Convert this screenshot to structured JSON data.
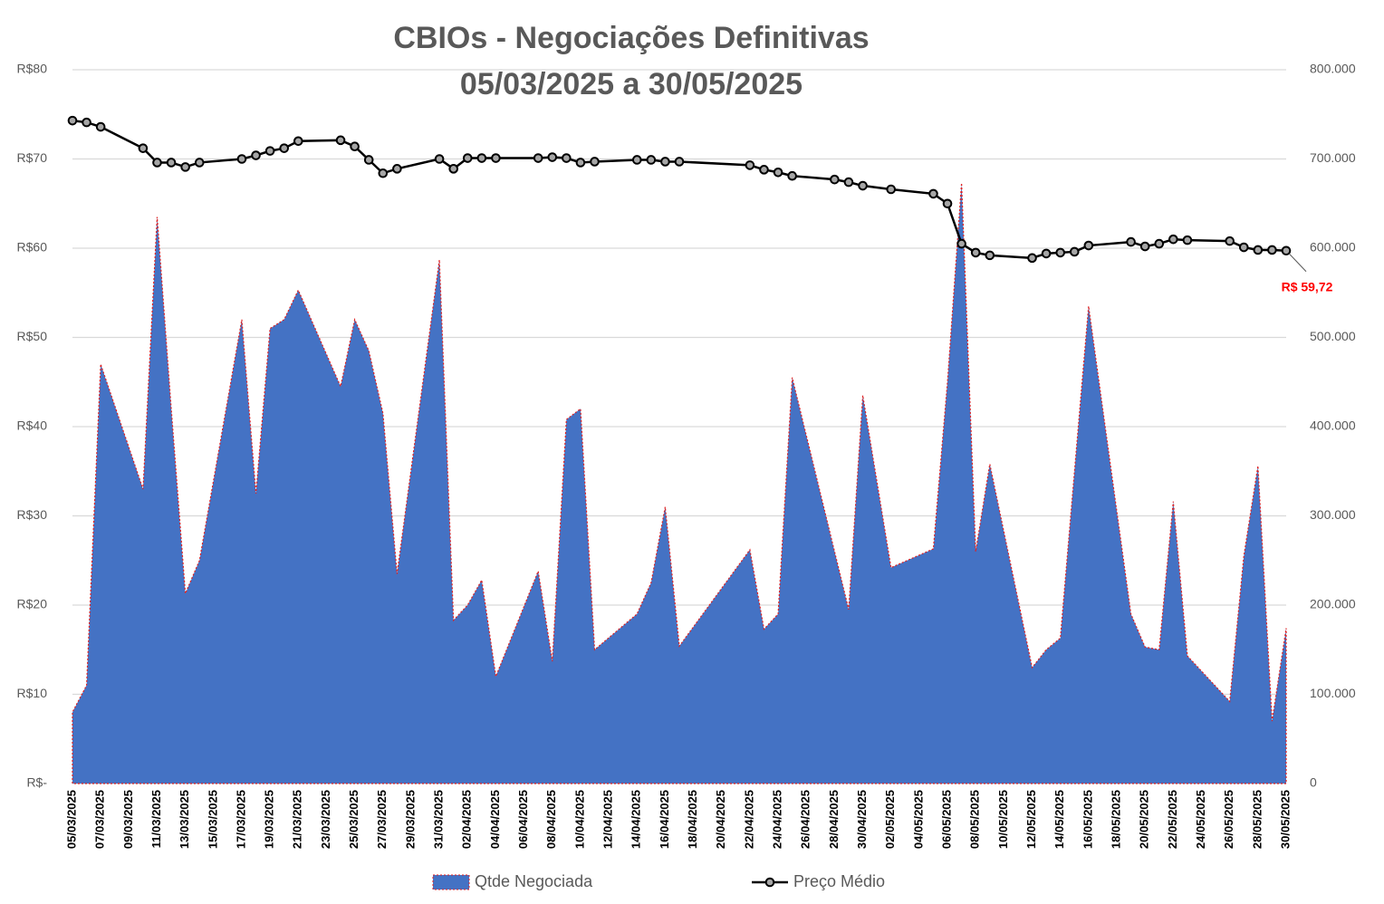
{
  "chart_data": {
    "type": "area-line",
    "title": "CBIOs - Negociações Definitivas",
    "subtitle": "05/03/2025 a 30/05/2025",
    "x": [
      "05/03/2025",
      "06/03/2025",
      "07/03/2025",
      "10/03/2025",
      "11/03/2025",
      "12/03/2025",
      "13/03/2025",
      "14/03/2025",
      "17/03/2025",
      "18/03/2025",
      "19/03/2025",
      "20/03/2025",
      "21/03/2025",
      "24/03/2025",
      "25/03/2025",
      "26/03/2025",
      "27/03/2025",
      "28/03/2025",
      "31/03/2025",
      "01/04/2025",
      "02/04/2025",
      "03/04/2025",
      "04/04/2025",
      "07/04/2025",
      "08/04/2025",
      "09/04/2025",
      "10/04/2025",
      "11/04/2025",
      "14/04/2025",
      "15/04/2025",
      "16/04/2025",
      "17/04/2025",
      "22/04/2025",
      "23/04/2025",
      "24/04/2025",
      "25/04/2025",
      "28/04/2025",
      "29/04/2025",
      "30/04/2025",
      "02/05/2025",
      "05/05/2025",
      "06/05/2025",
      "07/05/2025",
      "08/05/2025",
      "09/05/2025",
      "12/05/2025",
      "13/05/2025",
      "14/05/2025",
      "15/05/2025",
      "16/05/2025",
      "19/05/2025",
      "20/05/2025",
      "21/05/2025",
      "22/05/2025",
      "23/05/2025",
      "26/05/2025",
      "27/05/2025",
      "28/05/2025",
      "29/05/2025",
      "30/05/2025"
    ],
    "series": [
      {
        "name": "Qtde Negociada",
        "type": "area",
        "axis": "y2",
        "color": "#4472c4",
        "edge_color": "#e02020",
        "values": [
          80000,
          110000,
          470000,
          330000,
          635000,
          420000,
          213000,
          250000,
          520000,
          325000,
          510000,
          520000,
          553000,
          445000,
          520000,
          485000,
          415000,
          235000,
          587000,
          183000,
          200000,
          228000,
          120000,
          238000,
          137000,
          408000,
          420000,
          150000,
          190000,
          225000,
          310000,
          154000,
          262000,
          173000,
          190000,
          455000,
          260000,
          195000,
          435000,
          242000,
          263000,
          450000,
          673000,
          260000,
          358000,
          130000,
          150000,
          163000,
          350000,
          535000,
          190000,
          153000,
          150000,
          316000,
          143000,
          92000,
          255000,
          356000,
          70000,
          174000
        ]
      },
      {
        "name": "Preço Médio",
        "type": "line",
        "axis": "y",
        "color": "#000000",
        "marker_color": "#a6a6a6",
        "values": [
          74.3,
          74.1,
          73.6,
          71.2,
          69.6,
          69.6,
          69.1,
          69.6,
          70.0,
          70.4,
          70.9,
          71.2,
          72.0,
          72.1,
          71.4,
          69.9,
          68.4,
          68.9,
          70.0,
          68.9,
          70.1,
          70.1,
          70.1,
          70.1,
          70.2,
          70.1,
          69.6,
          69.7,
          69.9,
          69.9,
          69.7,
          69.7,
          69.3,
          68.8,
          68.5,
          68.1,
          67.7,
          67.4,
          67.0,
          66.6,
          66.1,
          65.0,
          60.5,
          59.5,
          59.2,
          58.9,
          59.4,
          59.5,
          59.6,
          60.3,
          60.7,
          60.2,
          60.5,
          61.0,
          60.9,
          60.8,
          60.1,
          59.8,
          59.8,
          59.72
        ],
        "value_labels": [
          null,
          null,
          null,
          null,
          null,
          null,
          null,
          null,
          null,
          null,
          null,
          null,
          null,
          null,
          null,
          null,
          null,
          null,
          null,
          null,
          null,
          null,
          null,
          null,
          null,
          null,
          null,
          null,
          null,
          null,
          null,
          null,
          null,
          null,
          null,
          null,
          null,
          null,
          null,
          null,
          null,
          null,
          null,
          null,
          null,
          null,
          null,
          null,
          null,
          null,
          null,
          null,
          null,
          null,
          null,
          null,
          null,
          null,
          null,
          "R$ 59,72"
        ],
        "value_label_color": "#ff0000"
      }
    ],
    "xticks": [
      "05/03/2025",
      "07/03/2025",
      "09/03/2025",
      "11/03/2025",
      "13/03/2025",
      "15/03/2025",
      "17/03/2025",
      "19/03/2025",
      "21/03/2025",
      "23/03/2025",
      "25/03/2025",
      "27/03/2025",
      "29/03/2025",
      "31/03/2025",
      "02/04/2025",
      "04/04/2025",
      "06/04/2025",
      "08/04/2025",
      "10/04/2025",
      "12/04/2025",
      "14/04/2025",
      "16/04/2025",
      "18/04/2025",
      "20/04/2025",
      "22/04/2025",
      "24/04/2025",
      "26/04/2025",
      "28/04/2025",
      "30/04/2025",
      "02/05/2025",
      "04/05/2025",
      "06/05/2025",
      "08/05/2025",
      "10/05/2025",
      "12/05/2025",
      "14/05/2025",
      "16/05/2025",
      "18/05/2025",
      "20/05/2025",
      "22/05/2025",
      "24/05/2025",
      "26/05/2025",
      "28/05/2025",
      "30/05/2025"
    ],
    "ylim": [
      0,
      80
    ],
    "yticks": [
      {
        "value": 0,
        "label": "R$-"
      },
      {
        "value": 10,
        "label": "R$10"
      },
      {
        "value": 20,
        "label": "R$20"
      },
      {
        "value": 30,
        "label": "R$30"
      },
      {
        "value": 40,
        "label": "R$40"
      },
      {
        "value": 50,
        "label": "R$50"
      },
      {
        "value": 60,
        "label": "R$60"
      },
      {
        "value": 70,
        "label": "R$70"
      },
      {
        "value": 80,
        "label": "R$80"
      }
    ],
    "y2lim": [
      0,
      800000
    ],
    "y2ticks": [
      0,
      {
        "value": 100000,
        "label": "100.000"
      },
      {
        "value": 200000,
        "label": "200.000"
      },
      {
        "value": 300000,
        "label": "300.000"
      },
      {
        "value": 400000,
        "label": "400.000"
      },
      {
        "value": 500000,
        "label": "500.000"
      },
      {
        "value": 600000,
        "label": "600.000"
      },
      {
        "value": 700000,
        "label": "700.000"
      },
      {
        "value": 800000,
        "label": "800.000"
      }
    ],
    "grid": true,
    "legend": "bottom"
  }
}
